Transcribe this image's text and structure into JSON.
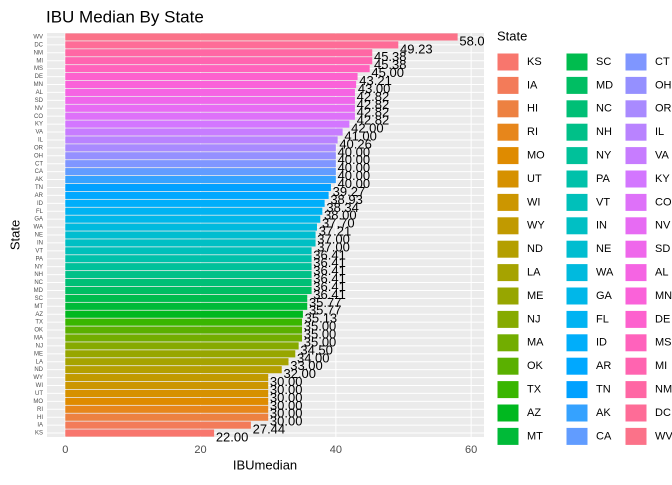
{
  "chart_data": {
    "type": "barh",
    "title": "IBU Median By State",
    "x_label": "IBUmedian",
    "y_label": "State",
    "legend_title": "State",
    "categories": [
      "KS",
      "IA",
      "HI",
      "RI",
      "MO",
      "UT",
      "WI",
      "WY",
      "ND",
      "LA",
      "ME",
      "NJ",
      "MA",
      "OK",
      "TX",
      "AZ",
      "MT",
      "SC",
      "MD",
      "NC",
      "NH",
      "NY",
      "PA",
      "VT",
      "IN",
      "NE",
      "WA",
      "GA",
      "FL",
      "ID",
      "AR",
      "TN",
      "AK",
      "CA",
      "CT",
      "OH",
      "OR",
      "IL",
      "VA",
      "KY",
      "CO",
      "NV",
      "SD",
      "AL",
      "MN",
      "DE",
      "MS",
      "MI",
      "NM",
      "DC",
      "WV"
    ],
    "values": [
      22,
      27.44,
      30,
      30,
      30,
      30,
      30,
      30,
      32,
      33,
      34,
      34.5,
      35,
      35,
      35,
      35.13,
      35.77,
      35.77,
      36.41,
      36.41,
      36.41,
      36.41,
      36.41,
      36.41,
      37,
      37,
      37.21,
      37.7,
      38,
      38.34,
      38.93,
      39.27,
      40,
      40,
      40,
      40,
      40,
      40.26,
      41,
      42,
      42.82,
      42.82,
      42.82,
      42.82,
      43,
      43.21,
      45,
      45.38,
      45.38,
      49.23,
      58
    ],
    "value_labels": [
      "22.00",
      "27.44",
      "30.00",
      "30.00",
      "30.00",
      "30.00",
      "30.00",
      "30.00",
      "32.00",
      "33.00",
      "34.00",
      "34.50",
      "35.00",
      "35.00",
      "35.00",
      "35.13",
      "35.77",
      "35.77",
      "36.41",
      "36.41",
      "36.41",
      "36.41",
      "36.41",
      "36.41",
      "37.00",
      "37.00",
      "37.21",
      "37.70",
      "38.00",
      "38.34",
      "38.93",
      "39.27",
      "40.00",
      "40.00",
      "40.00",
      "40.00",
      "40.00",
      "40.26",
      "41.00",
      "42.00",
      "42.82",
      "42.82",
      "42.82",
      "42.82",
      "43.00",
      "43.21",
      "45.00",
      "45.38",
      "45.38",
      "49.23",
      "58.00"
    ],
    "colors": [
      "#F8766D",
      "#F37B59",
      "#ED8141",
      "#E7861B",
      "#DF8B00",
      "#D69100",
      "#CC9600",
      "#C19A00",
      "#B49F00",
      "#A6A300",
      "#97A600",
      "#86AA00",
      "#72AD00",
      "#5AB000",
      "#39B600",
      "#00B81F",
      "#00BA38",
      "#00BC4E",
      "#00BE63",
      "#00BF76",
      "#00C088",
      "#00C19A",
      "#00C1AA",
      "#00C0BA",
      "#00BFC4",
      "#00BDD0",
      "#00BADE",
      "#00B7E9",
      "#00B3F2",
      "#00AEFA",
      "#00A8FF",
      "#00A1FF",
      "#35A2FF",
      "#619CFF",
      "#7F96FF",
      "#9590FF",
      "#A98AFF",
      "#B983FF",
      "#C77CFF",
      "#D376FF",
      "#DE71F9",
      "#E76BF3",
      "#EF67EB",
      "#F564E3",
      "#FA62D9",
      "#FD61CE",
      "#FF62BC",
      "#FF64B0",
      "#FF67A4",
      "#FE6C97",
      "#FB7289"
    ],
    "xlim": [
      -2.7,
      61.9
    ],
    "xticks": [
      0,
      20,
      40,
      60
    ],
    "grid": true
  }
}
